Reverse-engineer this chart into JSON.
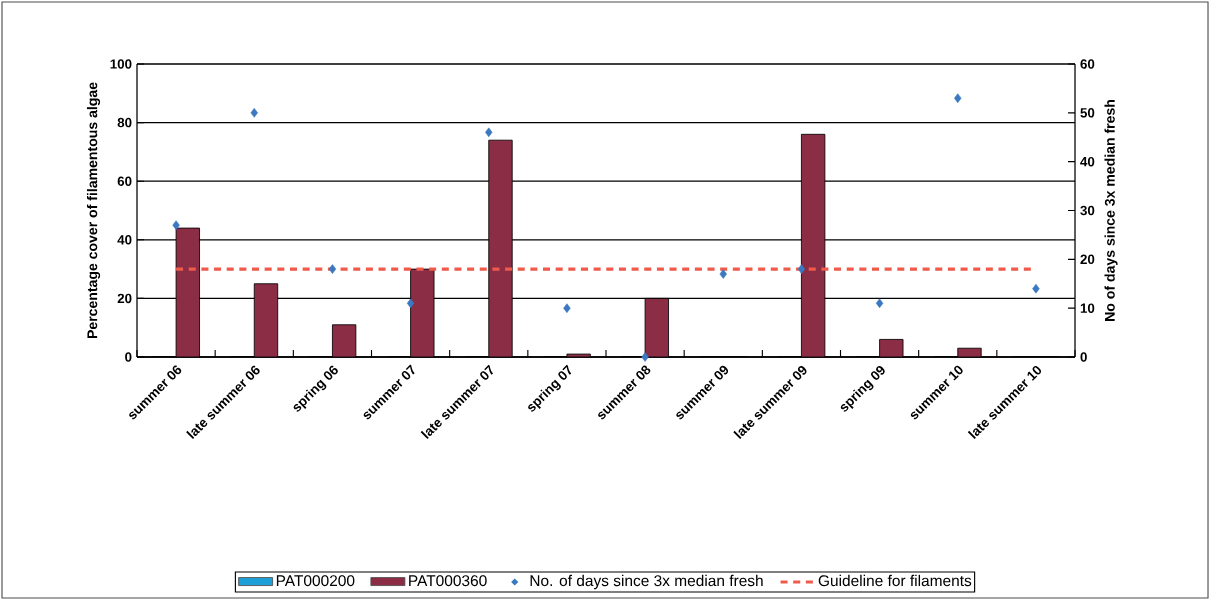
{
  "chart_data": {
    "type": "bar",
    "ylabel": "Percentage cover of filamentous algae",
    "y2label": "No of days since 3x median fresh",
    "categories": [
      "summer 06",
      "late summer 06",
      "spring 06",
      "summer 07",
      "late summer 07",
      "spring 07",
      "summer 08",
      "summer 09",
      "late summer 09",
      "spring 09",
      "summer 10",
      "late summer 10"
    ],
    "series": [
      {
        "name": "PAT000200",
        "color": "#1f9fd8",
        "values": [
          0,
          0,
          0,
          0,
          0,
          0,
          0,
          0,
          0,
          0,
          0,
          0
        ]
      },
      {
        "name": "PAT000360",
        "color": "#8b2d45",
        "values": [
          44,
          25,
          11,
          30,
          74,
          1,
          20,
          0,
          76,
          6,
          3,
          0
        ]
      },
      {
        "name": "No. of days since 3x median fresh",
        "type": "scatter",
        "axis": "y2",
        "marker": "diamond",
        "color": "#3a78c0",
        "values": [
          27,
          50,
          18,
          11,
          46,
          10,
          0,
          17,
          18,
          11,
          53,
          14
        ]
      }
    ],
    "ylim": [
      0,
      100
    ],
    "yticks": [
      0,
      20,
      40,
      60,
      80,
      100
    ],
    "y2lim": [
      0,
      60
    ],
    "y2ticks": [
      0,
      10,
      20,
      30,
      40,
      50,
      60
    ],
    "ref_lines": [
      {
        "axis": "y",
        "value": 30,
        "label": "Guideline for filaments",
        "color": "#f05a4a",
        "line_style": "dashed"
      }
    ],
    "grid": "y",
    "legend": "bottom"
  }
}
